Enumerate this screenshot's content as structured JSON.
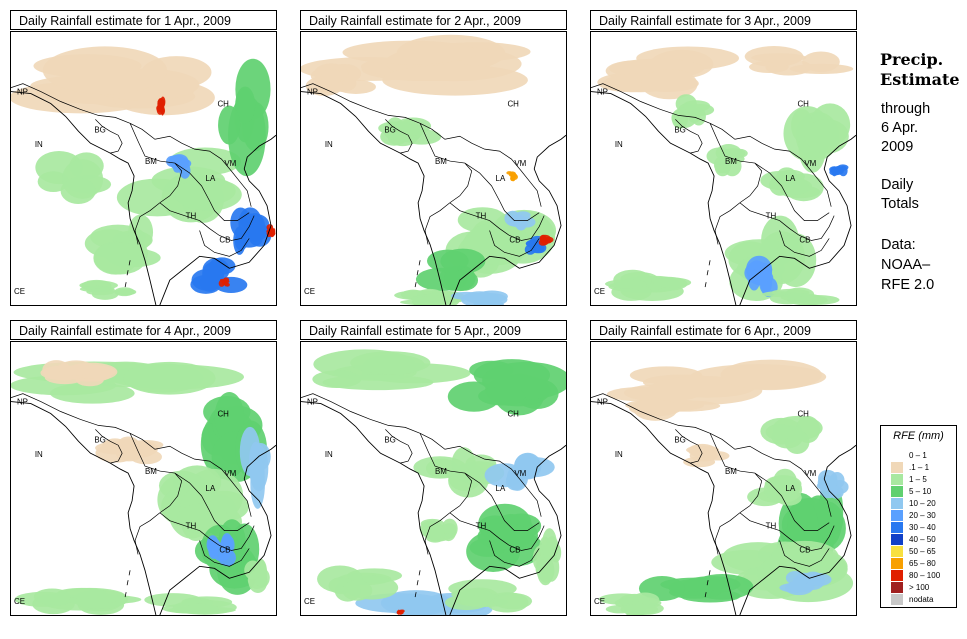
{
  "panels": [
    {
      "title": "Daily Rainfall estimate for  1 Apr., 2009"
    },
    {
      "title": "Daily Rainfall estimate for  2 Apr., 2009"
    },
    {
      "title": "Daily Rainfall estimate for  3 Apr., 2009"
    },
    {
      "title": "Daily Rainfall estimate for  4 Apr., 2009"
    },
    {
      "title": "Daily Rainfall estimate for  5 Apr., 2009"
    },
    {
      "title": "Daily Rainfall estimate for  6 Apr., 2009"
    }
  ],
  "country_labels": [
    "NP",
    "CH",
    "IN",
    "BG",
    "BM",
    "VM",
    "LA",
    "TH",
    "CB",
    "CE"
  ],
  "side": {
    "heading1": "Precip.",
    "heading2": "Estimate",
    "lines": [
      "through",
      "6 Apr.",
      "2009",
      "",
      "Daily",
      "Totals",
      "",
      "Data:",
      "NOAA–",
      "RFE 2.0"
    ]
  },
  "legend": {
    "title": "RFE (mm)",
    "items": [
      {
        "label": "0 – 1",
        "color": "#ffffff"
      },
      {
        "label": ".1 – 1",
        "color": "#f0d8b8"
      },
      {
        "label": "1 – 5",
        "color": "#a8e8a0"
      },
      {
        "label": "5 – 10",
        "color": "#60d070"
      },
      {
        "label": "10 – 20",
        "color": "#90c8f0"
      },
      {
        "label": "20 – 30",
        "color": "#5aa0ff"
      },
      {
        "label": "30 – 40",
        "color": "#2878f0"
      },
      {
        "label": "40 – 50",
        "color": "#1040c8"
      },
      {
        "label": "50 – 65",
        "color": "#f8e040"
      },
      {
        "label": "65 – 80",
        "color": "#f8a000"
      },
      {
        "label": "80 – 100",
        "color": "#e02000"
      },
      {
        "label": "> 100",
        "color": "#a02020"
      },
      {
        "label": "nodata",
        "color": "#c8c8c8"
      }
    ]
  }
}
